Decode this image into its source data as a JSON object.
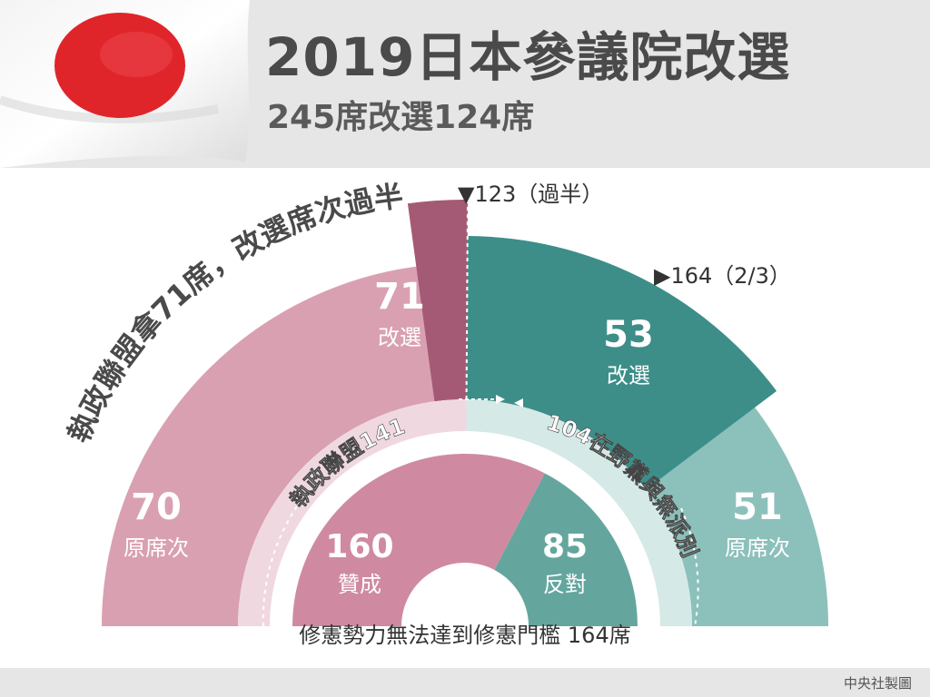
{
  "header": {
    "title": "2019日本參議院改選",
    "subtitle": "245席改選124席"
  },
  "annotations": {
    "coalition_note": "執政聯盟拿71席，改選席次過半",
    "majority_marker": "▼123（過半）",
    "two_thirds_marker": "▶164（2/3）",
    "coalition_total": "執政聯盟141",
    "opposition_total": "104在野黨與無派別",
    "bottom_note": "修憲勢力無法達到修憲門檻 164席",
    "credit": "中央社製圖"
  },
  "colors": {
    "outer_coalition": "#d9a0b2",
    "middle_coalition": "#a45a74",
    "inner_coalition": "#cf8aa2",
    "outer_opposition": "#8cc0bb",
    "middle_opposition": "#3d8e89",
    "inner_opposition": "#64a69e",
    "band_coalition": "#f0d8e0",
    "band_opposition": "#d5e9e6"
  },
  "chart_data": {
    "type": "pie",
    "total_seats": 245,
    "contested_seats": 124,
    "majority_threshold": 123,
    "two_thirds_threshold": 164,
    "rings": [
      {
        "ring": "outer",
        "categories": [
          "原席次",
          "原席次"
        ],
        "values": [
          70,
          51
        ],
        "labels": [
          "70",
          "51"
        ]
      },
      {
        "ring": "middle",
        "categories": [
          "改選",
          "改選"
        ],
        "values": [
          71,
          53
        ],
        "labels": [
          "71",
          "53"
        ]
      },
      {
        "ring": "inner",
        "categories": [
          "贊成",
          "反對"
        ],
        "values": [
          160,
          85
        ],
        "labels": [
          "160",
          "85"
        ]
      }
    ],
    "totals": [
      {
        "value": 141
      },
      {
        "value": 104
      }
    ]
  }
}
